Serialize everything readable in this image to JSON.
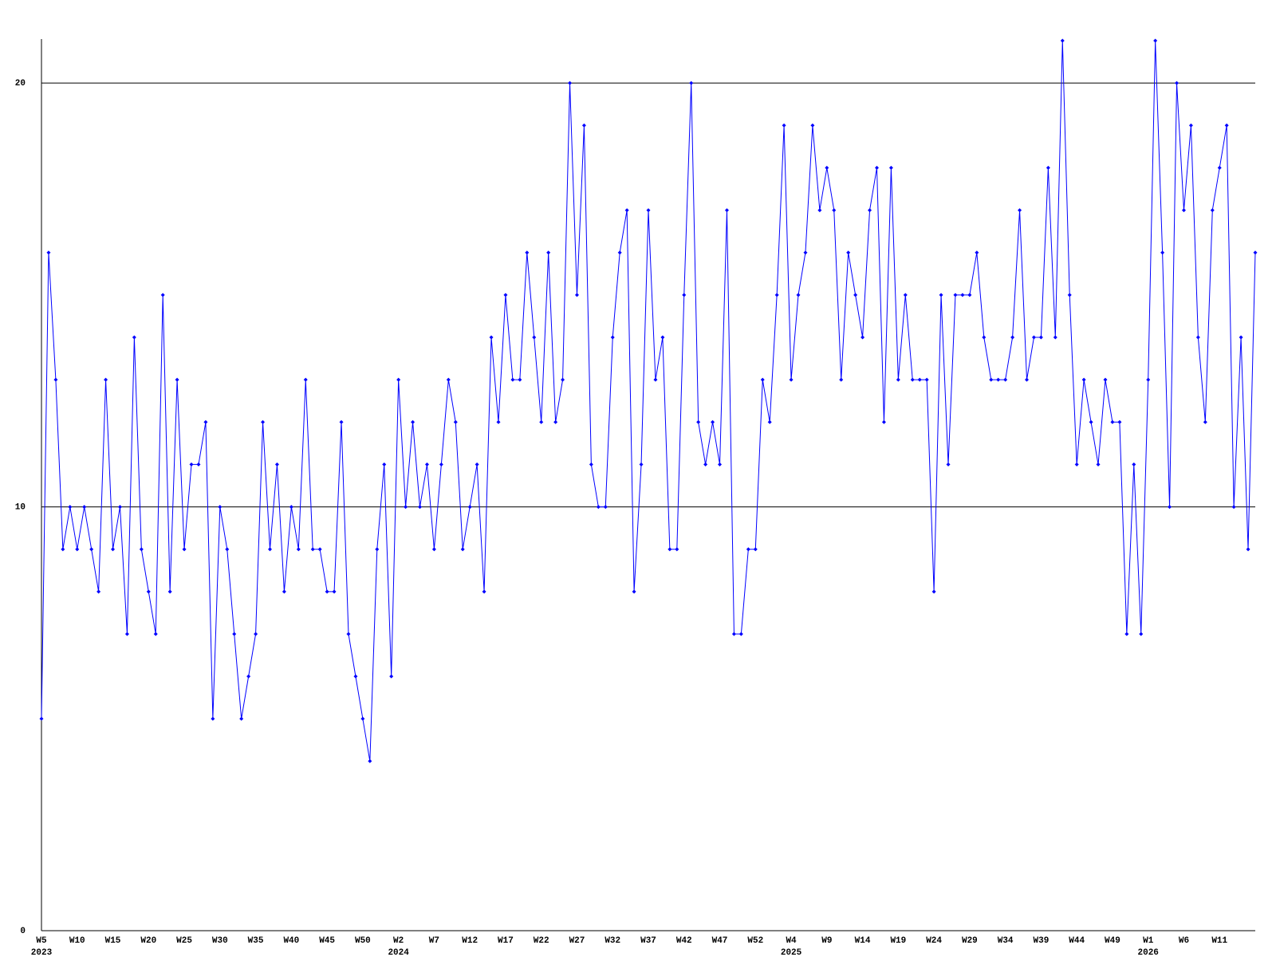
{
  "chart_data": {
    "type": "line",
    "categories": [
      "W5",
      null,
      null,
      null,
      null,
      "W10",
      null,
      null,
      null,
      null,
      "W15",
      null,
      null,
      null,
      null,
      "W20",
      null,
      null,
      null,
      null,
      "W25",
      null,
      null,
      null,
      null,
      "W30",
      null,
      null,
      null,
      null,
      "W35",
      null,
      null,
      null,
      null,
      "W40",
      null,
      null,
      null,
      null,
      "W45",
      null,
      null,
      null,
      null,
      "W50",
      null,
      null,
      null,
      null,
      "W2",
      null,
      null,
      null,
      null,
      "W7",
      null,
      null,
      null,
      null,
      "W12",
      null,
      null,
      null,
      null,
      "W17",
      null,
      null,
      null,
      null,
      "W22",
      null,
      null,
      null,
      null,
      "W27",
      null,
      null,
      null,
      null,
      "W32",
      null,
      null,
      null,
      null,
      "W37",
      null,
      null,
      null,
      null,
      "W42",
      null,
      null,
      null,
      null,
      "W47",
      null,
      null,
      null,
      null,
      "W52",
      null,
      null,
      null,
      null,
      "W4",
      null,
      null,
      null,
      null,
      "W9",
      null,
      null,
      null,
      null,
      "W14",
      null,
      null,
      null,
      null,
      "W19",
      null,
      null,
      null,
      null,
      "W24",
      null,
      null,
      null,
      null,
      "W29",
      null,
      null,
      null,
      null,
      "W34",
      null,
      null,
      null,
      null,
      "W39",
      null,
      null,
      null,
      null,
      "W44",
      null,
      null,
      null,
      null,
      "W49",
      null,
      null,
      null,
      null,
      "W1",
      null,
      null,
      null,
      null,
      "W6",
      null,
      null,
      null,
      null,
      "W11",
      null,
      null,
      null,
      null,
      null
    ],
    "x_year_labels": [
      "2023",
      null,
      null,
      null,
      null,
      null,
      null,
      null,
      null,
      null,
      null,
      null,
      null,
      null,
      null,
      null,
      null,
      null,
      null,
      null,
      null,
      null,
      null,
      null,
      null,
      null,
      null,
      null,
      null,
      null,
      null,
      null,
      null,
      null,
      null,
      null,
      null,
      null,
      null,
      null,
      null,
      null,
      null,
      null,
      null,
      null,
      null,
      null,
      null,
      null,
      "2024",
      null,
      null,
      null,
      null,
      null,
      null,
      null,
      null,
      null,
      null,
      null,
      null,
      null,
      null,
      null,
      null,
      null,
      null,
      null,
      null,
      null,
      null,
      null,
      null,
      null,
      null,
      null,
      null,
      null,
      null,
      null,
      null,
      null,
      null,
      null,
      null,
      null,
      null,
      null,
      null,
      null,
      null,
      null,
      null,
      null,
      null,
      null,
      null,
      null,
      null,
      null,
      null,
      null,
      null,
      "2025",
      null,
      null,
      null,
      null,
      null,
      null,
      null,
      null,
      null,
      null,
      null,
      null,
      null,
      null,
      null,
      null,
      null,
      null,
      null,
      null,
      null,
      null,
      null,
      null,
      null,
      null,
      null,
      null,
      null,
      null,
      null,
      null,
      null,
      null,
      null,
      null,
      null,
      null,
      null,
      null,
      null,
      null,
      null,
      null,
      null,
      null,
      null,
      null,
      null,
      "2026",
      null,
      null,
      null,
      null,
      null,
      null,
      null,
      null,
      null,
      null,
      null,
      null,
      null,
      null,
      null
    ],
    "values": [
      5,
      16,
      13,
      9,
      10,
      9,
      10,
      9,
      8,
      13,
      9,
      10,
      7,
      14,
      9,
      8,
      7,
      15,
      8,
      13,
      9,
      11,
      11,
      12,
      5,
      10,
      9,
      7,
      5,
      6,
      7,
      12,
      9,
      11,
      8,
      10,
      9,
      13,
      9,
      9,
      8,
      8,
      12,
      7,
      6,
      5,
      4,
      9,
      11,
      6,
      13,
      10,
      12,
      10,
      11,
      9,
      11,
      13,
      12,
      9,
      10,
      11,
      8,
      14,
      12,
      15,
      13,
      13,
      16,
      14,
      12,
      16,
      12,
      13,
      20,
      15,
      19,
      11,
      10,
      10,
      14,
      16,
      17,
      8,
      11,
      17,
      13,
      14,
      9,
      9,
      15,
      20,
      12,
      11,
      12,
      11,
      17,
      7,
      7,
      9,
      9,
      13,
      12,
      15,
      19,
      13,
      15,
      16,
      19,
      17,
      18,
      17,
      13,
      16,
      15,
      14,
      17,
      18,
      12,
      18,
      13,
      15,
      13,
      13,
      13,
      8,
      15,
      11,
      15,
      15,
      15,
      16,
      14,
      13,
      13,
      13,
      14,
      17,
      13,
      14,
      14,
      18,
      14,
      21,
      15,
      11,
      13,
      12,
      11,
      13,
      12,
      12,
      7,
      11,
      7,
      13,
      21,
      16,
      10,
      20,
      17,
      19,
      14,
      12,
      17,
      18,
      19,
      10,
      14,
      9,
      16
    ],
    "color": "#0000ff",
    "ylim": [
      0,
      21
    ],
    "yticks": [
      0,
      10,
      20
    ],
    "grid": true
  }
}
